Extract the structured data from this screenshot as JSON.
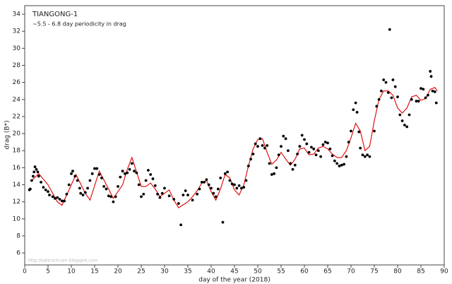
{
  "chart_data": {
    "type": "scatter",
    "title": "TIANGONG-1",
    "subtitle": "~5.5 - 6.8 day periodicity in drag",
    "watermark": "http://sattrackcam.blogspot.com",
    "xlabel": "day of the year (2018)",
    "ylabel": "drag (B*)",
    "xlim": [
      0,
      90
    ],
    "ylim": [
      4.6,
      35
    ],
    "xticks": [
      0,
      5,
      10,
      15,
      20,
      25,
      30,
      35,
      40,
      45,
      50,
      55,
      60,
      65,
      70,
      75,
      80,
      85,
      90
    ],
    "yticks": [
      6,
      8,
      10,
      12,
      14,
      16,
      18,
      20,
      22,
      24,
      26,
      28,
      30,
      32,
      34
    ],
    "points": {
      "color": "#000000",
      "x": [
        1,
        1.2,
        1.5,
        1.8,
        2,
        2.2,
        2.5,
        2.8,
        3,
        3.5,
        4,
        4.5,
        5,
        5.3,
        6,
        6.5,
        7,
        7.5,
        8,
        8.5,
        9,
        9.5,
        10,
        10.3,
        10.8,
        11.3,
        11.8,
        12,
        12.5,
        13,
        13.5,
        14,
        14.5,
        15,
        15.5,
        16,
        16.5,
        17,
        17.5,
        18,
        18.5,
        19,
        19.5,
        20,
        20.5,
        21,
        21.5,
        22,
        22.5,
        23,
        23.5,
        24,
        24.5,
        25,
        25.5,
        26,
        26.5,
        27,
        27.5,
        28,
        28.5,
        29,
        29.5,
        30,
        31,
        32,
        33,
        33.5,
        34,
        34.5,
        35,
        36,
        37,
        37.5,
        38,
        38.5,
        39,
        39.5,
        40,
        40.5,
        41,
        41.5,
        42,
        42.5,
        43,
        43.5,
        44,
        44.5,
        45,
        45.5,
        46,
        46.5,
        47,
        47.5,
        48,
        48.5,
        49,
        49.5,
        50,
        50.5,
        51,
        51.5,
        52,
        52.5,
        53,
        53.5,
        54,
        54.5,
        55,
        55.5,
        56,
        56.5,
        57,
        57.5,
        58,
        58.5,
        59,
        59.5,
        60,
        60.5,
        61,
        61.5,
        62,
        62.5,
        63,
        63.5,
        64,
        64.5,
        65,
        65.5,
        66,
        66.5,
        67,
        67.5,
        68,
        68.5,
        69,
        69.5,
        70,
        70.5,
        71,
        71.3,
        71.7,
        72,
        72.5,
        73,
        73.5,
        74,
        75,
        75.5,
        76,
        76.5,
        77,
        77.5,
        78,
        78.3,
        78.7,
        79,
        79.5,
        80,
        80.5,
        81,
        81.5,
        82,
        82.5,
        83,
        84,
        84.5,
        85,
        85.5,
        86,
        86.5,
        87,
        87.2,
        87.5,
        88,
        88.3
      ],
      "y": [
        13.4,
        13.5,
        14.5,
        15,
        15.5,
        16.1,
        15.8,
        15.5,
        15,
        14.3,
        13.7,
        13.4,
        13.2,
        12.8,
        12.6,
        12.4,
        12.5,
        12.3,
        12.1,
        12.1,
        12.9,
        14,
        15.3,
        15.6,
        15,
        14.5,
        13.6,
        13,
        12.8,
        13.1,
        13.6,
        14.5,
        15.3,
        15.9,
        15.9,
        15.2,
        14.8,
        13.8,
        13.5,
        12.7,
        12.6,
        12,
        12.6,
        13.8,
        14.9,
        15.6,
        15.3,
        15.4,
        15.8,
        16.5,
        15.6,
        15.4,
        14,
        12.6,
        12.9,
        14.5,
        15.7,
        15.2,
        14.7,
        13.9,
        12.9,
        12.5,
        13,
        13.6,
        12.7,
        12.3,
        11.8,
        9.3,
        12.8,
        13.3,
        12.8,
        12.2,
        12.9,
        13.5,
        14.3,
        14.3,
        14.6,
        14,
        13.6,
        13,
        12.6,
        13.5,
        14.8,
        9.6,
        15.3,
        15.5,
        14.5,
        14.1,
        14,
        13.6,
        13.9,
        13.6,
        13.7,
        14.5,
        16.2,
        17,
        17.6,
        18.8,
        18.5,
        19.4,
        18.6,
        18.3,
        18.6,
        16.5,
        15.2,
        15.3,
        16,
        17.5,
        18.5,
        19.7,
        19.4,
        18,
        16.5,
        15.8,
        16.3,
        17.6,
        18.5,
        19.8,
        19.3,
        18.8,
        17.8,
        18.4,
        18.2,
        17.5,
        18,
        17.3,
        18.7,
        19,
        18.9,
        18.2,
        17.4,
        16.8,
        16.5,
        16.2,
        16.3,
        16.4,
        17.3,
        19,
        20.3,
        22.8,
        23.6,
        22.5,
        20.2,
        18.3,
        17.5,
        17.3,
        17.5,
        17.3,
        20.3,
        23.2,
        24,
        25,
        26.3,
        26,
        24.8,
        32.2,
        24.2,
        26.3,
        25.5,
        24.3,
        22.2,
        21.5,
        21,
        20.8,
        22.2,
        24,
        23.8,
        23.8,
        25.3,
        25.2,
        24.2,
        24.5,
        27.3,
        26.7,
        25,
        24.9,
        23.6
      ]
    },
    "fit": {
      "color": "#e00000",
      "x": [
        1.5,
        3,
        5,
        7,
        8,
        10,
        11,
        13,
        14,
        16,
        18,
        19,
        21,
        22,
        23,
        24,
        25,
        26,
        27,
        28,
        29,
        30,
        31,
        32,
        33,
        35,
        36,
        37,
        38,
        39,
        40,
        41,
        42,
        43,
        44,
        45,
        46,
        47,
        48,
        49,
        50,
        51,
        52,
        53,
        54,
        55,
        56,
        57,
        58,
        59,
        60,
        61,
        62,
        63,
        64,
        65,
        66,
        67,
        68,
        69,
        70,
        71,
        72,
        73,
        74,
        75,
        76,
        77,
        78,
        79,
        80,
        81,
        82,
        83,
        84,
        85,
        86,
        87,
        88,
        88.5
      ],
      "y": [
        14.5,
        15.3,
        14,
        12,
        11.6,
        14,
        15.2,
        13,
        12.2,
        15.6,
        13.5,
        12.4,
        14,
        15.8,
        17.2,
        15.5,
        13.8,
        13.8,
        14.2,
        13.5,
        12.6,
        13,
        13.4,
        12.2,
        11.3,
        12,
        12.6,
        13.3,
        14.2,
        14.5,
        13.2,
        12.2,
        13.5,
        15.2,
        14.8,
        13.4,
        12.8,
        14,
        16.2,
        18.2,
        19.3,
        19.4,
        17.8,
        16.4,
        16.9,
        17.8,
        17,
        16.3,
        17,
        18.2,
        18.3,
        17.5,
        17.6,
        18.3,
        18.5,
        18.2,
        17.6,
        17.2,
        17.2,
        18,
        19.5,
        21.2,
        20.3,
        18,
        18.5,
        21.5,
        24,
        25,
        25,
        24.5,
        23,
        22.4,
        23,
        24.3,
        24.5,
        23.9,
        24.1,
        25.2,
        25.4,
        25
      ]
    }
  }
}
